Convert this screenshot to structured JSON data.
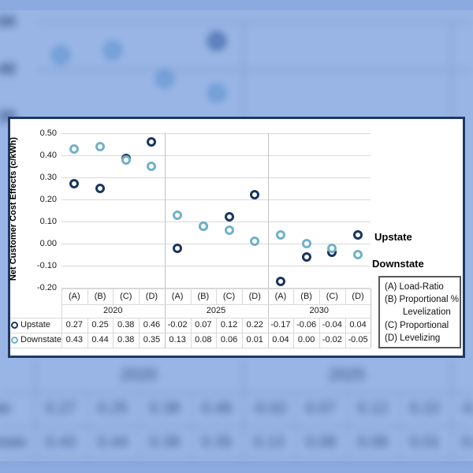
{
  "chart_data": {
    "type": "scatter",
    "title": "",
    "ylabel": "Net Customer Cost Effects (c/kWh)",
    "ylim": [
      -0.2,
      0.5
    ],
    "yticks": [
      "0.50",
      "0.40",
      "0.30",
      "0.20",
      "0.10",
      "0.00",
      "-0.10",
      "-0.20"
    ],
    "groups": [
      "2020",
      "2025",
      "2030"
    ],
    "categories": [
      "(A)",
      "(B)",
      "(C)",
      "(D)"
    ],
    "series": [
      {
        "name": "Upstate",
        "color": "#1a355f",
        "values": [
          0.27,
          0.25,
          0.38,
          0.46,
          -0.02,
          0.07,
          0.12,
          0.22,
          -0.17,
          -0.06,
          -0.04,
          0.04
        ]
      },
      {
        "name": "Downstate",
        "color": "#72b1c9",
        "values": [
          0.43,
          0.44,
          0.38,
          0.35,
          0.13,
          0.08,
          0.06,
          0.01,
          0.04,
          0.0,
          -0.02,
          -0.05
        ]
      }
    ],
    "grid": true,
    "data_table": true,
    "legend_position": "right-of-plot"
  },
  "series_labels": {
    "upstate": "Upstate",
    "downstate": "Downstate"
  },
  "legend_box": {
    "items": [
      {
        "label": "(A) Load-Ratio",
        "indent": false
      },
      {
        "label": "(B) Proportional %",
        "indent": false
      },
      {
        "label": "Levelization",
        "indent": true
      },
      {
        "label": "(C) Proportional",
        "indent": false
      },
      {
        "label": "(D) Levelizing",
        "indent": false
      }
    ]
  },
  "colors": {
    "upstate": "#1a355f",
    "downstate": "#72b1c9",
    "panel_border": "#1f3864",
    "gridline": "#d9d9d9",
    "group_divider": "#c3c3c3",
    "background_tint": "rgba(70,120,210,0.55)"
  }
}
